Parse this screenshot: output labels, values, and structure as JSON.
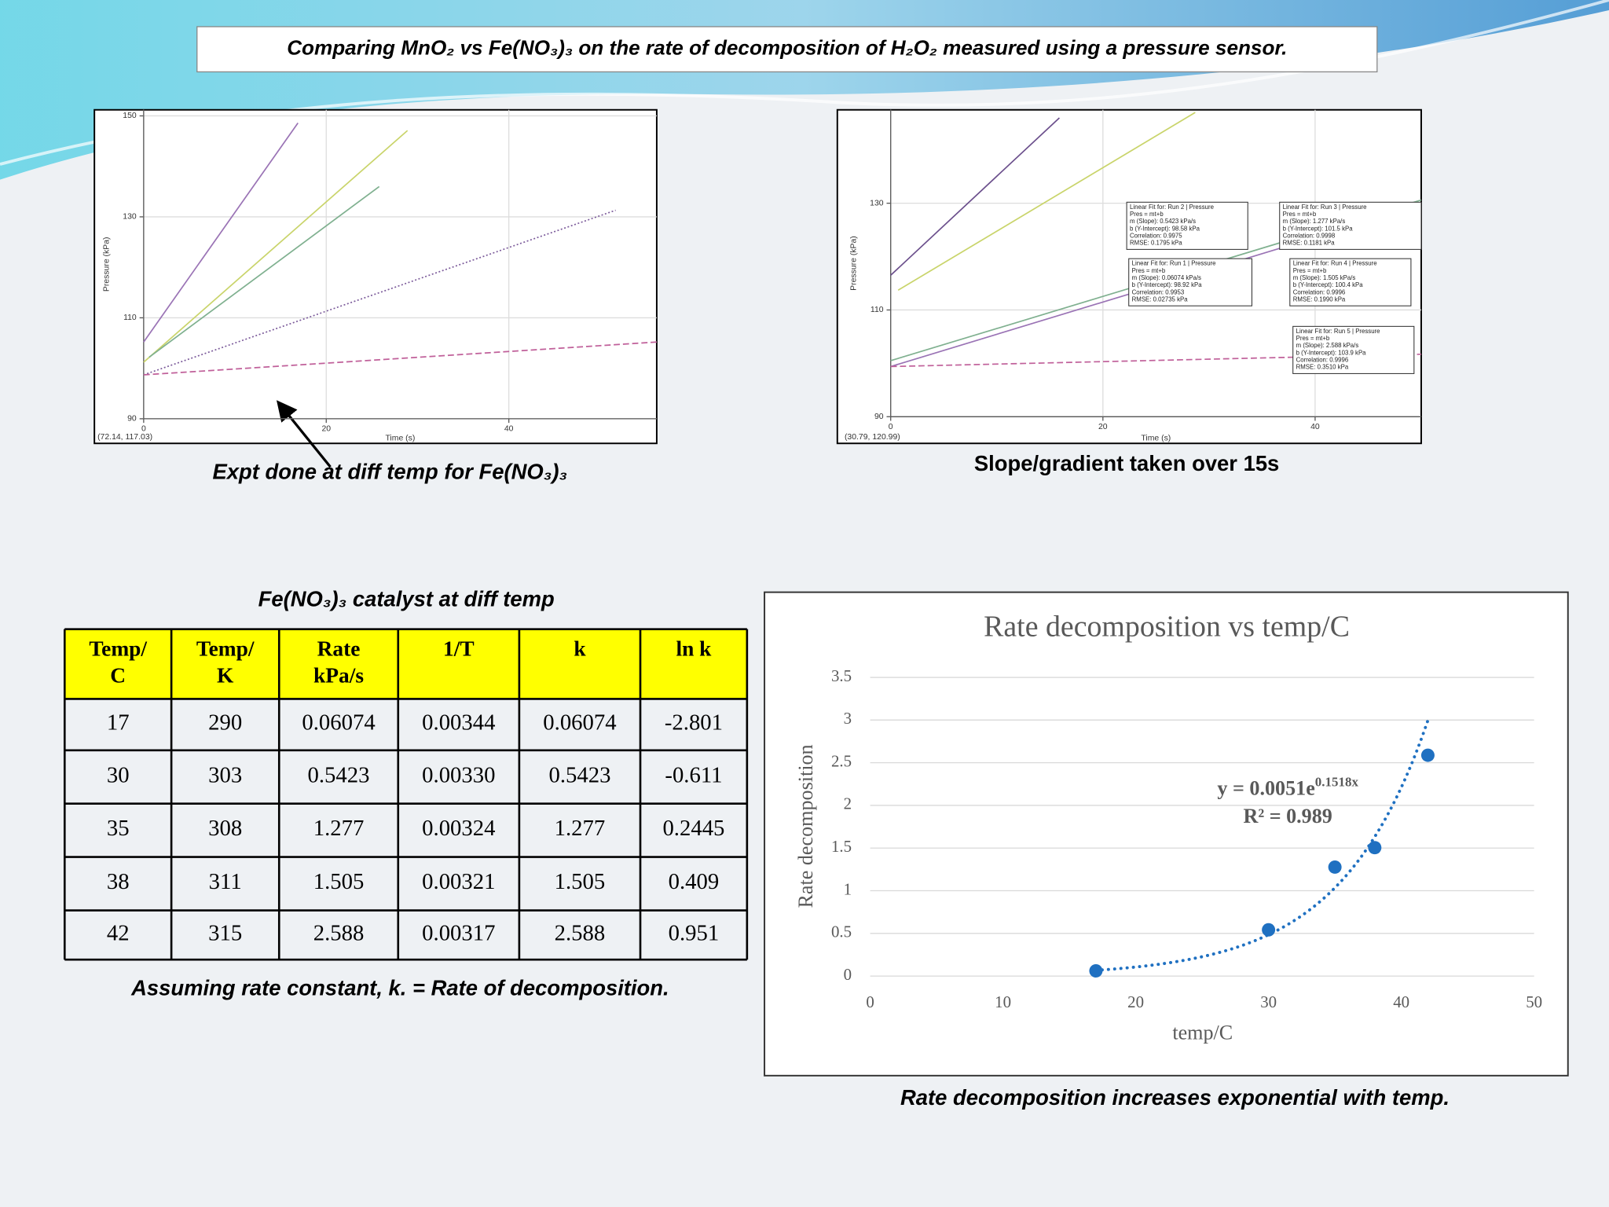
{
  "title": "Comparing MnO₂ vs Fe(NO₃)₃ on the rate of decomposition of H₂O₂ measured using a pressure sensor.",
  "captions": {
    "expt": "Expt done at diff temp for Fe(NO₃)₃",
    "slope": "Slope/gradient taken over 15s",
    "table_title": "Fe(NO₃)₃  catalyst at diff temp",
    "assumption": "Assuming rate constant, k. = Rate of decomposition.",
    "conclusion": "Rate decomposition increases exponential with temp."
  },
  "chart_data": [
    {
      "type": "line",
      "x_label": "Time (s)",
      "y_label": "Pressure (kPa)",
      "coordinates": "(72.14, 117.03)",
      "xlim": [
        0,
        56.2
      ],
      "ylim": [
        90,
        151.2
      ],
      "xticks": [
        0,
        20,
        40
      ],
      "yticks": [
        90,
        110,
        130,
        150
      ],
      "grid": true,
      "series": [
        {
          "color": "#9a73b5",
          "style": "solid",
          "x": [
            0,
            16.9
          ],
          "values": [
            105.2,
            148.6
          ]
        },
        {
          "color": "#c9d46a",
          "style": "solid",
          "x": [
            0,
            28.9
          ],
          "values": [
            101.2,
            147.1
          ]
        },
        {
          "color": "#7fb08f",
          "style": "solid",
          "x": [
            0.6,
            25.8
          ],
          "values": [
            102.2,
            136
          ]
        },
        {
          "color": "#7b5a9a",
          "style": "dotted",
          "x": [
            0,
            51.7
          ],
          "values": [
            98.7,
            131.3
          ]
        },
        {
          "color": "#c0609a",
          "style": "dashed",
          "x": [
            0,
            56.2
          ],
          "values": [
            98.7,
            105.2
          ]
        }
      ]
    },
    {
      "type": "line",
      "x_label": "Time (s)",
      "y_label": "Pressure (kPa)",
      "coordinates": "(30.79, 120.99)",
      "xlim": [
        0,
        50
      ],
      "ylim": [
        90,
        147.5
      ],
      "xticks": [
        0,
        20,
        40
      ],
      "yticks": [
        90,
        110,
        130
      ],
      "grid": true,
      "series": [
        {
          "color": "#6b4f8c",
          "style": "solid",
          "x": [
            0,
            15.9
          ],
          "values": [
            116.5,
            146
          ]
        },
        {
          "color": "#c9d46a",
          "style": "solid",
          "x": [
            0.7,
            28.7
          ],
          "values": [
            113.7,
            147
          ]
        },
        {
          "color": "#7fb08f",
          "style": "solid",
          "x": [
            0,
            50
          ],
          "values": [
            100.5,
            130.6
          ]
        },
        {
          "color": "#9a73b5",
          "style": "solid",
          "x": [
            0,
            50
          ],
          "values": [
            99.4,
            129.6
          ]
        },
        {
          "color": "#c0609a",
          "style": "dashed",
          "x": [
            0,
            50
          ],
          "values": [
            99.4,
            101.7
          ]
        }
      ],
      "annotations": [
        [
          "Linear Fit for: Run 2 | Pressure",
          "Pres = mt+b",
          "m (Slope): 0.5423 kPa/s",
          "b (Y-Intercept): 98.58 kPa",
          "Correlation: 0.9975",
          "RMSE: 0.1795 kPa"
        ],
        [
          "Linear Fit for: Run 3 | Pressure",
          "Pres = mt+b",
          "m (Slope): 1.277 kPa/s",
          "b (Y-Intercept): 101.5 kPa",
          "Correlation: 0.9998",
          "RMSE: 0.1181 kPa"
        ],
        [
          "Linear Fit for: Run 1 | Pressure",
          "Pres = mt+b",
          "m (Slope): 0.06074 kPa/s",
          "b (Y-Intercept): 98.92 kPa",
          "Correlation: 0.9953",
          "RMSE: 0.02735 kPa"
        ],
        [
          "Linear Fit for: Run 4 | Pressure",
          "Pres = mt+b",
          "m (Slope): 1.505 kPa/s",
          "b (Y-Intercept): 100.4 kPa",
          "Correlation: 0.9996",
          "RMSE: 0.1990 kPa"
        ],
        [
          "Linear Fit for: Run 5 | Pressure",
          "Pres = mt+b",
          "m (Slope): 2.588 kPa/s",
          "b (Y-Intercept): 103.9 kPa",
          "Correlation: 0.9996",
          "RMSE: 0.3510 kPa"
        ]
      ]
    },
    {
      "type": "scatter",
      "title": "Rate decomposition vs temp/C",
      "x_label": "temp/C",
      "y_label": "Rate decomposition",
      "color": "#1f70c1",
      "x": [
        17,
        30,
        35,
        38,
        42
      ],
      "values": [
        0.06074,
        0.5423,
        1.277,
        1.505,
        2.588
      ],
      "xlim": [
        0,
        50
      ],
      "ylim": [
        0,
        3.5
      ],
      "xticks": [
        0,
        10,
        20,
        30,
        40,
        50
      ],
      "yticks": [
        0,
        0.5,
        1,
        1.5,
        2,
        2.5,
        3,
        3.5
      ],
      "grid": true,
      "trendline": {
        "type": "exponential",
        "a": 0.0051,
        "b": 0.1518,
        "equation": "y = 0.0051e",
        "exponent": "0.1518x",
        "r_squared": "R² = 0.989"
      }
    }
  ],
  "table": {
    "header": [
      [
        "Temp/",
        "C"
      ],
      [
        "Temp/",
        "K"
      ],
      [
        "Rate",
        "kPa/s"
      ],
      [
        "1/T"
      ],
      [
        "k"
      ],
      [
        "ln k"
      ]
    ],
    "rows": [
      [
        "17",
        "290",
        "0.06074",
        "0.00344",
        "0.06074",
        "-2.801"
      ],
      [
        "30",
        "303",
        "0.5423",
        "0.00330",
        "0.5423",
        "-0.611"
      ],
      [
        "35",
        "308",
        "1.277",
        "0.00324",
        "1.277",
        "0.2445"
      ],
      [
        "38",
        "311",
        "1.505",
        "0.00321",
        "1.505",
        "0.409"
      ],
      [
        "42",
        "315",
        "2.588",
        "0.00317",
        "2.588",
        "0.951"
      ]
    ]
  }
}
